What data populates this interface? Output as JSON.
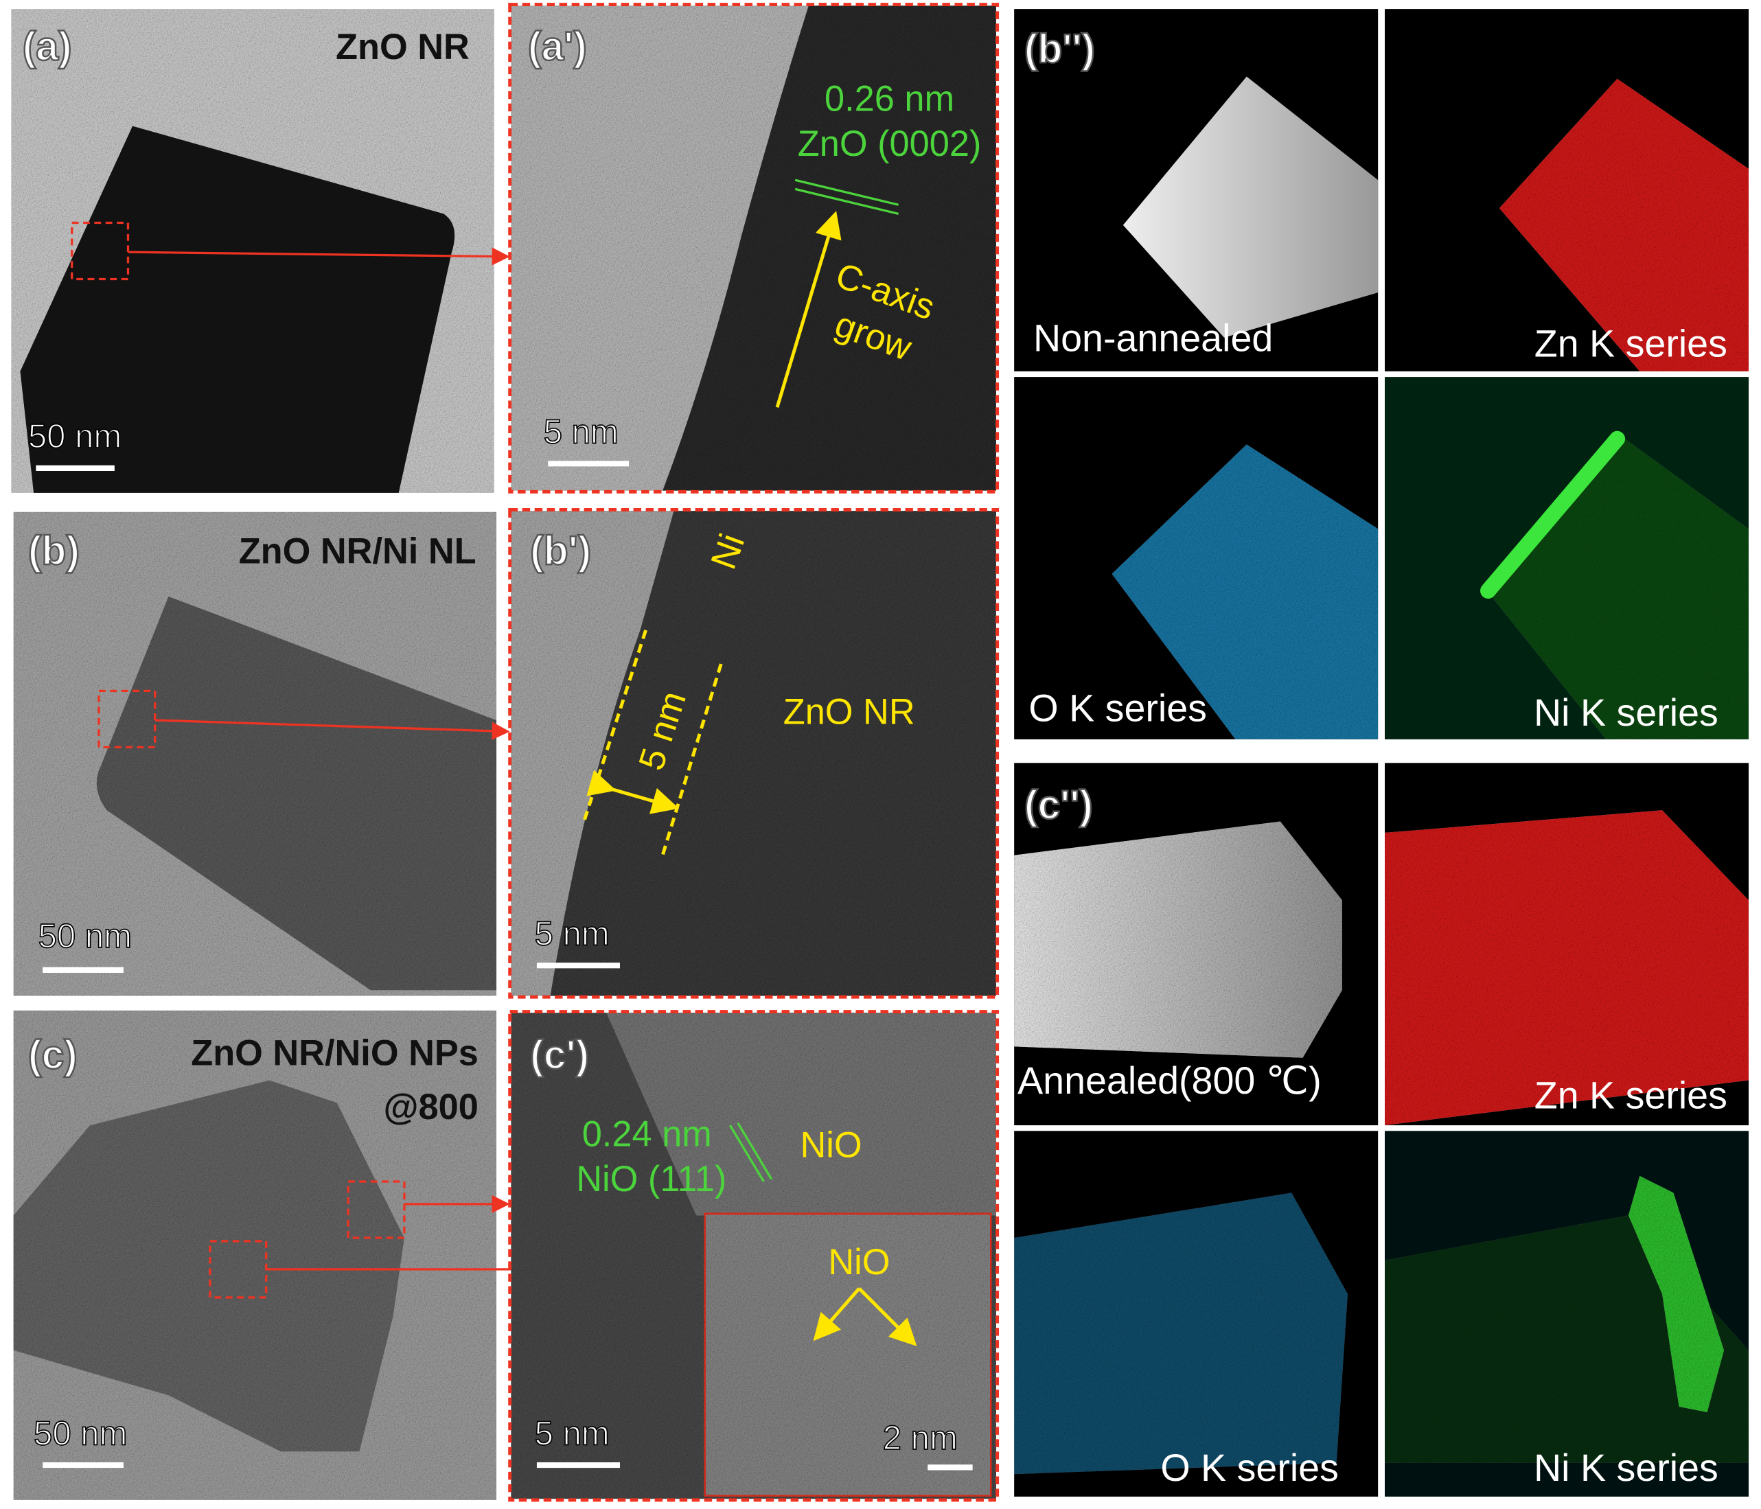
{
  "panels": {
    "a": {
      "label": "(a)",
      "title": "ZnO NR",
      "scale": "50 nm"
    },
    "a2": {
      "label": "(a')",
      "spacing": "0.26 nm",
      "plane": "ZnO (0002)",
      "axis": "C-axis",
      "grow": "grow",
      "scale": "5 nm"
    },
    "b": {
      "label": "(b)",
      "title": "ZnO NR/Ni NL",
      "scale": "50 nm"
    },
    "b2": {
      "label": "(b')",
      "ni": "Ni",
      "thickness": "5 nm",
      "core": "ZnO NR",
      "scale": "5 nm"
    },
    "c": {
      "label": "(c)",
      "title": "ZnO NR/NiO NPs",
      "title2": "@800",
      "scale": "50 nm"
    },
    "c2": {
      "label": "(c')",
      "spacing": "0.24 nm",
      "plane": "NiO (111)",
      "nio": "NiO",
      "inset_nio": "NiO",
      "inset_scale": "2 nm",
      "scale": "5 nm"
    },
    "b3": {
      "label": "(b'')",
      "image": "Non-annealed",
      "zn": "Zn K series",
      "o": "O K series",
      "ni": "Ni K series"
    },
    "c3": {
      "label": "(c'')",
      "image": "Annealed(800 ℃)",
      "zn": "Zn K series",
      "o": "O K series",
      "ni": "Ni K series"
    }
  }
}
